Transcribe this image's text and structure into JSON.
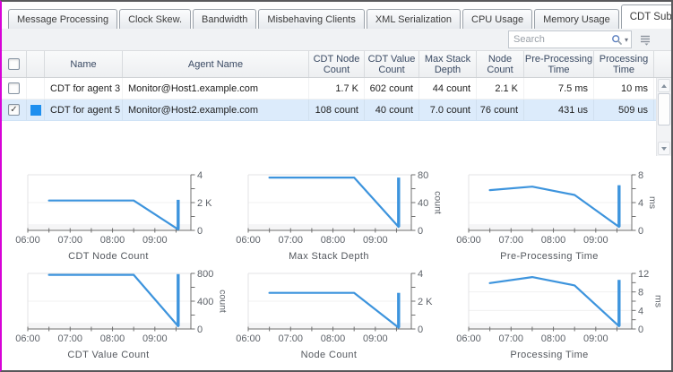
{
  "tabs": {
    "items": [
      {
        "label": "Message Processing",
        "active": false
      },
      {
        "label": "Clock Skew.",
        "active": false
      },
      {
        "label": "Bandwidth",
        "active": false
      },
      {
        "label": "Misbehaving Clients",
        "active": false
      },
      {
        "label": "XML Serialization",
        "active": false
      },
      {
        "label": "CPU Usage",
        "active": false
      },
      {
        "label": "Memory Usage",
        "active": false
      },
      {
        "label": "CDT Submission",
        "active": true
      }
    ]
  },
  "toolbar": {
    "search_placeholder": "Search"
  },
  "grid": {
    "columns": [
      "Name",
      "Agent Name",
      "CDT Node Count",
      "CDT Value Count",
      "Max Stack Depth",
      "Node Count",
      "Pre-Processing Time",
      "Processing Time"
    ],
    "rows": [
      {
        "checked": false,
        "selected": false,
        "swatch": "",
        "cells": [
          "CDT for agent 3",
          "Monitor@Host1.example.com",
          "1.7 K",
          "602 count",
          "44 count",
          "2.1 K",
          "7.5 ms",
          "10 ms"
        ]
      },
      {
        "checked": true,
        "selected": true,
        "swatch": "#1E8FEF",
        "cells": [
          "CDT for agent 5",
          "Monitor@Host2.example.com",
          "108 count",
          "40 count",
          "7.0 count",
          "76 count",
          "431 us",
          "509 us"
        ]
      }
    ]
  },
  "colors": {
    "line": "#3D94DD",
    "selected_row": "#DCEBFB",
    "swatch": "#1E8FEF",
    "border_dark": "#58585B",
    "border_magenta": "#D703D7",
    "header_text": "#3A4A63"
  },
  "chart_data": [
    {
      "type": "line",
      "title": "CDT Node Count",
      "unit": "",
      "y_max": 4,
      "y_ticks": [
        {
          "v": 0,
          "label": "0"
        },
        {
          "v": 2,
          "label": "2 K"
        },
        {
          "v": 4,
          "label": "4"
        }
      ],
      "y_minor": [
        1,
        3
      ],
      "x_range": [
        6,
        9.85
      ],
      "x_ticks": [
        {
          "h": 6,
          "label": "06:00"
        },
        {
          "h": 7,
          "label": "07:00"
        },
        {
          "h": 8,
          "label": "08:00"
        },
        {
          "h": 9,
          "label": "09:00"
        }
      ],
      "points": [
        [
          6.5,
          2.15
        ],
        [
          8.5,
          2.15
        ],
        [
          9.55,
          0.07
        ]
      ],
      "spike": {
        "h": 9.55,
        "from": 0.07,
        "to": 2.2
      }
    },
    {
      "type": "line",
      "title": "Max Stack Depth",
      "unit": "count",
      "y_max": 80,
      "y_ticks": [
        {
          "v": 0,
          "label": "0"
        },
        {
          "v": 40,
          "label": "40"
        },
        {
          "v": 80,
          "label": "80"
        }
      ],
      "y_minor": [
        20,
        60
      ],
      "x_range": [
        6,
        9.85
      ],
      "x_ticks": [
        {
          "h": 6,
          "label": "06:00"
        },
        {
          "h": 7,
          "label": "07:00"
        },
        {
          "h": 8,
          "label": "08:00"
        },
        {
          "h": 9,
          "label": "09:00"
        }
      ],
      "points": [
        [
          6.5,
          76
        ],
        [
          8.5,
          76
        ],
        [
          9.55,
          5
        ]
      ],
      "spike": {
        "h": 9.55,
        "from": 5,
        "to": 76
      }
    },
    {
      "type": "line",
      "title": "Pre-Processing Time",
      "unit": "ms",
      "y_max": 8,
      "y_ticks": [
        {
          "v": 0,
          "label": "0"
        },
        {
          "v": 4,
          "label": "4"
        },
        {
          "v": 8,
          "label": "8"
        }
      ],
      "y_minor": [
        2,
        6
      ],
      "x_range": [
        6,
        9.85
      ],
      "x_ticks": [
        {
          "h": 6,
          "label": "06:00"
        },
        {
          "h": 7,
          "label": "07:00"
        },
        {
          "h": 8,
          "label": "08:00"
        },
        {
          "h": 9,
          "label": "09:00"
        }
      ],
      "points": [
        [
          6.5,
          5.8
        ],
        [
          7.5,
          6.3
        ],
        [
          8.5,
          5.1
        ],
        [
          9.55,
          0.5
        ]
      ],
      "spike": {
        "h": 9.55,
        "from": 0.5,
        "to": 6.5
      }
    },
    {
      "type": "line",
      "title": "CDT Value Count",
      "unit": "count",
      "y_max": 800,
      "y_ticks": [
        {
          "v": 0,
          "label": "0"
        },
        {
          "v": 400,
          "label": "400"
        },
        {
          "v": 800,
          "label": "800"
        }
      ],
      "y_minor": [
        200,
        600
      ],
      "x_range": [
        6,
        9.85
      ],
      "x_ticks": [
        {
          "h": 6,
          "label": "06:00"
        },
        {
          "h": 7,
          "label": "07:00"
        },
        {
          "h": 8,
          "label": "08:00"
        },
        {
          "h": 9,
          "label": "09:00"
        }
      ],
      "points": [
        [
          6.5,
          780
        ],
        [
          8.5,
          780
        ],
        [
          9.55,
          40
        ]
      ],
      "spike": {
        "h": 9.55,
        "from": 40,
        "to": 790
      }
    },
    {
      "type": "line",
      "title": "Node Count",
      "unit": "",
      "y_max": 4,
      "y_ticks": [
        {
          "v": 0,
          "label": "0"
        },
        {
          "v": 2,
          "label": "2 K"
        },
        {
          "v": 4,
          "label": "4"
        }
      ],
      "y_minor": [
        1,
        3
      ],
      "x_range": [
        6,
        9.85
      ],
      "x_ticks": [
        {
          "h": 6,
          "label": "06:00"
        },
        {
          "h": 7,
          "label": "07:00"
        },
        {
          "h": 8,
          "label": "08:00"
        },
        {
          "h": 9,
          "label": "09:00"
        }
      ],
      "points": [
        [
          6.5,
          2.6
        ],
        [
          8.5,
          2.6
        ],
        [
          9.55,
          0.1
        ]
      ],
      "spike": {
        "h": 9.55,
        "from": 0.1,
        "to": 2.6
      }
    },
    {
      "type": "line",
      "title": "Processing Time",
      "unit": "ms",
      "y_max": 12,
      "y_ticks": [
        {
          "v": 0,
          "label": "0"
        },
        {
          "v": 4,
          "label": "4"
        },
        {
          "v": 8,
          "label": "8"
        },
        {
          "v": 12,
          "label": "12"
        }
      ],
      "y_minor": [
        2,
        6,
        10
      ],
      "x_range": [
        6,
        9.85
      ],
      "x_ticks": [
        {
          "h": 6,
          "label": "06:00"
        },
        {
          "h": 7,
          "label": "07:00"
        },
        {
          "h": 8,
          "label": "08:00"
        },
        {
          "h": 9,
          "label": "09:00"
        }
      ],
      "points": [
        [
          6.5,
          9.9
        ],
        [
          7.5,
          11.2
        ],
        [
          8.5,
          9.4
        ],
        [
          9.55,
          0.6
        ]
      ],
      "spike": {
        "h": 9.55,
        "from": 0.6,
        "to": 10.6
      }
    }
  ]
}
